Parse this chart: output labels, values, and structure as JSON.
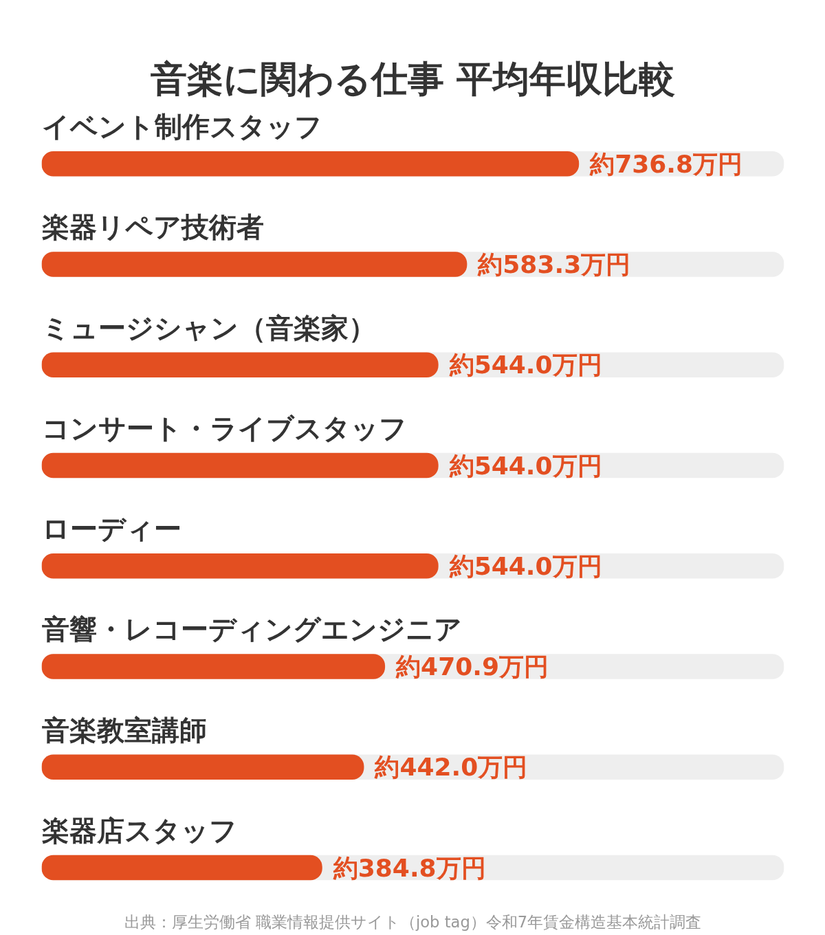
{
  "chart_data": {
    "type": "bar",
    "orientation": "horizontal",
    "title": "音楽に関わる仕事 平均年収比較",
    "categories": [
      "イベント制作スタッフ",
      "楽器リペア技術者",
      "ミュージシャン（音楽家）",
      "コンサート・ライブスタッフ",
      "ローディー",
      "音響・レコーディングエンジニア",
      "音楽教室講師",
      "楽器店スタッフ"
    ],
    "values": [
      736.8,
      583.3,
      544.0,
      544.0,
      544.0,
      470.9,
      442.0,
      384.8
    ],
    "value_labels": [
      "約736.8万円",
      "約583.3万円",
      "約544.0万円",
      "約544.0万円",
      "約544.0万円",
      "約470.9万円",
      "約442.0万円",
      "約384.8万円"
    ],
    "color": "#e34f21",
    "xlim": [
      0,
      1018
    ],
    "grid": false,
    "annotations": [
      "出典：厚生労働省 職業情報提供サイト（job tag）令和7年賃金構造基本統計調査"
    ]
  }
}
